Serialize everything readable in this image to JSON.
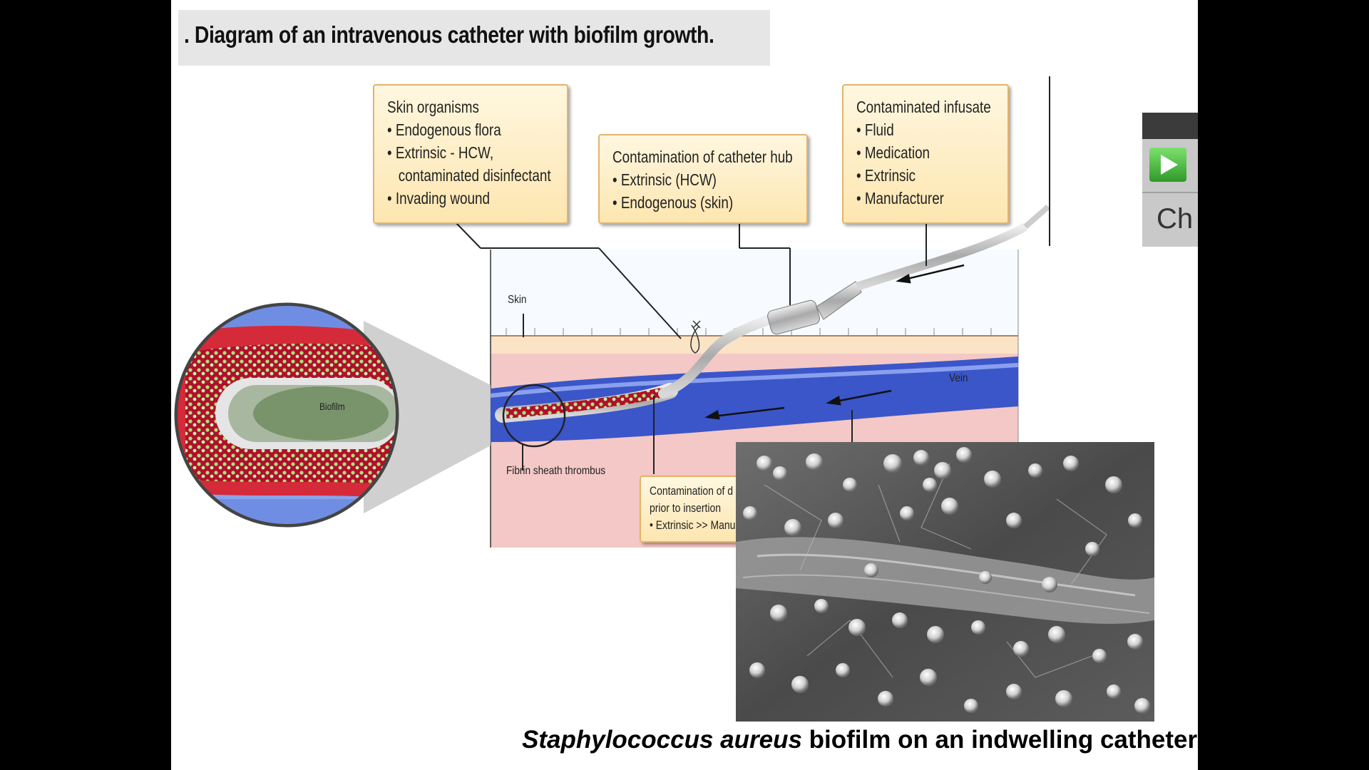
{
  "title": ". Diagram of an intravenous catheter with biofilm growth.",
  "boxes": {
    "skin": {
      "title": "Skin organisms",
      "items": [
        "• Endogenous flora",
        "• Extrinsic - HCW,",
        "   contaminated disinfectant",
        "• Invading wound"
      ]
    },
    "hub": {
      "title": "Contamination of catheter hub",
      "items": [
        "• Extrinsic (HCW)",
        "• Endogenous (skin)"
      ]
    },
    "infusate": {
      "title": "Contaminated infusate",
      "items": [
        "• Fluid",
        "• Medication",
        "• Extrinsic",
        "• Manufacturer"
      ]
    },
    "device": {
      "title": "Contamination of d",
      "items": [
        "prior to insertion",
        "• Extrinsic >> Manu"
      ]
    }
  },
  "labels": {
    "skin": "Skin",
    "vein": "Vein",
    "biofilm": "Biofilm",
    "fibrin": "Fibrin sheath thrombus"
  },
  "caption": {
    "italic": "Staphylococcus aureus",
    "rest": " biofilm on an indwelling catheter"
  },
  "side_widget": {
    "text": "Ch",
    "play_icon": "play-icon"
  },
  "colors": {
    "box_fill": "#fde6b0",
    "vein": "#3a55c8",
    "tissue": "#f2b8b8",
    "biofilm_red": "#c8102e"
  }
}
